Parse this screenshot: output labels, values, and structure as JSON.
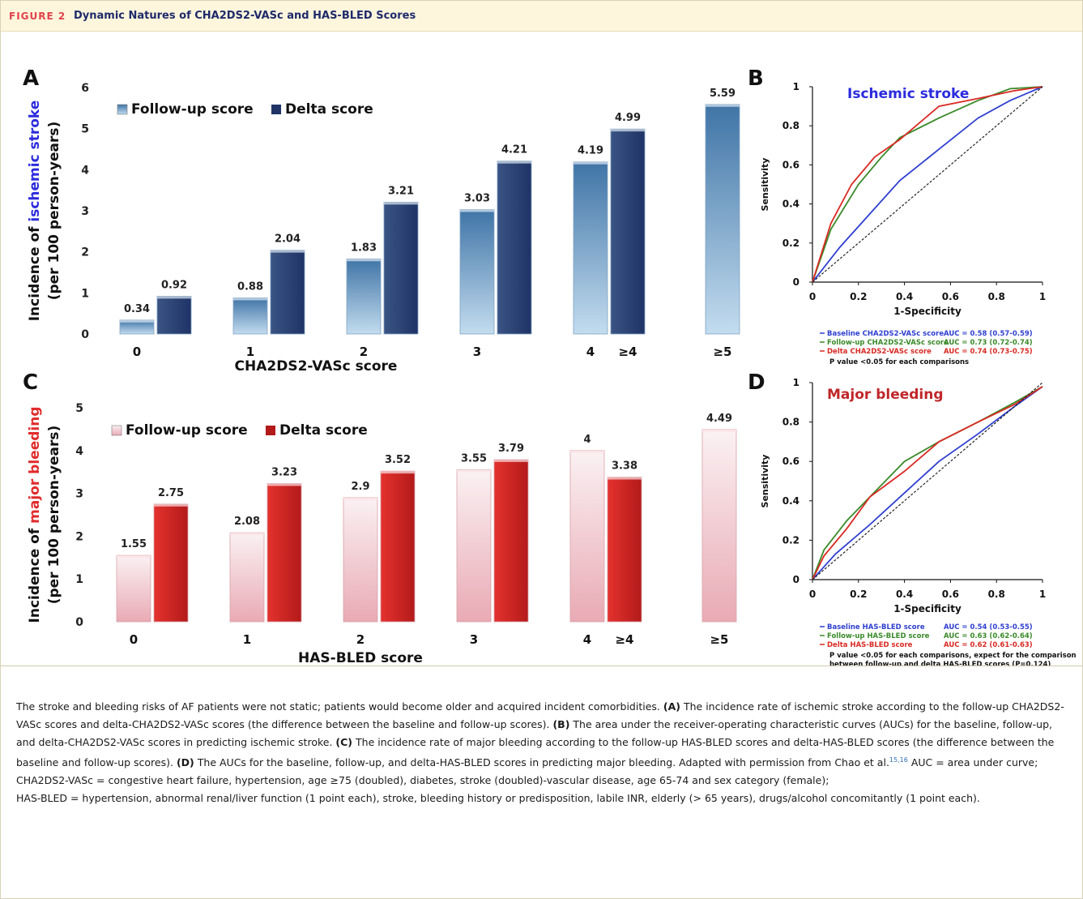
{
  "header": {
    "figure_label": "FIGURE 2",
    "title": "Dynamic Natures of CHA2DS2-VASc and HAS-BLED Scores"
  },
  "colors": {
    "followup_light": "#9ec6e3",
    "followup_dark": "#3f74a6",
    "delta_light": "#3a5484",
    "delta_dark": "#1f3366",
    "bleed_followup_light": "#f6eaec",
    "bleed_followup_dark": "#e9aab4",
    "bleed_delta_light": "#e4322e",
    "bleed_delta_dark": "#b31a1a",
    "roc_baseline": "#2f3fd0",
    "roc_followup": "#3a8a2a",
    "roc_delta": "#d82a23",
    "roc_diagonal": "#222222",
    "stroke_accent": "#2b2bdd",
    "bleed_accent": "#e02b2b"
  },
  "chart_data": [
    {
      "panel": "A",
      "type": "bar",
      "ylabel_prefix": "Incidence of ",
      "ylabel_highlight": "ischemic stroke",
      "ylabel_line2": "(per 100 person-years)",
      "xlabel": "CHA2DS2-VASc score",
      "ylim": [
        0,
        6
      ],
      "yticks": [
        "0",
        "1",
        "2",
        "3",
        "4",
        "5",
        "6"
      ],
      "legend": [
        "Follow-up score",
        "Delta score"
      ],
      "legend_position": "top-left",
      "groups": [
        {
          "followup": {
            "label": "0",
            "value": 0.34
          },
          "delta": {
            "label": "",
            "value": 0.92
          },
          "tick": "0"
        },
        {
          "followup": {
            "label": "1",
            "value": 0.88
          },
          "delta": {
            "label": "",
            "value": 2.04
          },
          "tick": "1"
        },
        {
          "followup": {
            "label": "2",
            "value": 1.83
          },
          "delta": {
            "label": "",
            "value": 3.21
          },
          "tick": "2"
        },
        {
          "followup": {
            "label": "3",
            "value": 3.03
          },
          "delta": {
            "label": "",
            "value": 4.21
          },
          "tick": "3"
        },
        {
          "followup": {
            "label": "4",
            "value": 4.19
          },
          "delta": {
            "label": "≥4",
            "value": 4.99
          },
          "tick": "4"
        },
        {
          "followup": {
            "label": "≥5",
            "value": 5.59
          },
          "delta": null,
          "tick": "≥5"
        }
      ]
    },
    {
      "panel": "B",
      "type": "line",
      "title": "Ischemic stroke",
      "xlabel": "1-Specificity",
      "ylabel": "Sensitivity",
      "xlim": [
        0,
        1
      ],
      "ylim": [
        0,
        1
      ],
      "xticks": [
        "0",
        "0.2",
        "0.4",
        "0.6",
        "0.8",
        "1"
      ],
      "yticks": [
        "0",
        "0.2",
        "0.4",
        "0.6",
        "0.8",
        "1"
      ],
      "series": [
        {
          "name": "Baseline CHA2DS2-VASc score",
          "auc": "AUC = 0.58 (0.57-0.59)",
          "color_key": "roc_baseline",
          "x": [
            0,
            0.12,
            0.25,
            0.38,
            0.55,
            0.72,
            0.86,
            1
          ],
          "y": [
            0,
            0.18,
            0.35,
            0.52,
            0.68,
            0.84,
            0.93,
            1
          ]
        },
        {
          "name": "Follow-up CHA2DS2-VASc score",
          "auc": "AUC = 0.73 (0.72-0.74)",
          "color_key": "roc_followup",
          "x": [
            0,
            0.08,
            0.2,
            0.3,
            0.38,
            0.55,
            0.72,
            0.86,
            1
          ],
          "y": [
            0,
            0.27,
            0.5,
            0.64,
            0.74,
            0.84,
            0.93,
            0.99,
            1
          ]
        },
        {
          "name": "Delta CHA2DS2-VASc score",
          "auc": "AUC = 0.74 (0.73-0.75)",
          "color_key": "roc_delta",
          "x": [
            0,
            0.08,
            0.17,
            0.27,
            0.38,
            0.55,
            0.72,
            0.88,
            1
          ],
          "y": [
            0,
            0.3,
            0.5,
            0.64,
            0.73,
            0.9,
            0.94,
            0.98,
            1
          ]
        },
        {
          "name": "",
          "auc": "",
          "color_key": "roc_diagonal",
          "dashed": true,
          "x": [
            0,
            1
          ],
          "y": [
            0,
            1
          ]
        }
      ],
      "note": "P value <0.05 for each comparisons"
    },
    {
      "panel": "C",
      "type": "bar",
      "ylabel_prefix": "Incidence of ",
      "ylabel_highlight": "major bleeding",
      "ylabel_line2": "(per 100 person-years)",
      "xlabel": "HAS-BLED score",
      "ylim": [
        0,
        5
      ],
      "yticks": [
        "0",
        "1",
        "2",
        "3",
        "4",
        "5"
      ],
      "legend": [
        "Follow-up score",
        "Delta score"
      ],
      "legend_position": "top-left",
      "groups": [
        {
          "followup": {
            "label": "0",
            "value": 1.55
          },
          "delta": {
            "label": "",
            "value": 2.75
          },
          "tick": "0"
        },
        {
          "followup": {
            "label": "1",
            "value": 2.08
          },
          "delta": {
            "label": "",
            "value": 3.23
          },
          "tick": "1"
        },
        {
          "followup": {
            "label": "2",
            "value": 2.9
          },
          "delta": {
            "label": "",
            "value": 3.52
          },
          "tick": "2"
        },
        {
          "followup": {
            "label": "3",
            "value": 3.55
          },
          "delta": {
            "label": "",
            "value": 3.79
          },
          "tick": "3"
        },
        {
          "followup": {
            "label": "4",
            "value": 4
          },
          "delta": {
            "label": "≥4",
            "value": 3.38
          },
          "tick": "4"
        },
        {
          "followup": {
            "label": "≥5",
            "value": 4.49
          },
          "delta": null,
          "tick": "≥5"
        }
      ]
    },
    {
      "panel": "D",
      "type": "line",
      "title": "Major bleeding",
      "xlabel": "1-Specificity",
      "ylabel": "Sensitivity",
      "xlim": [
        0,
        1
      ],
      "ylim": [
        0,
        1
      ],
      "xticks": [
        "0",
        "0.2",
        "0.4",
        "0.6",
        "0.8",
        "1"
      ],
      "yticks": [
        "0",
        "0.2",
        "0.4",
        "0.6",
        "0.8",
        "1"
      ],
      "series": [
        {
          "name": "Baseline HAS-BLED score",
          "auc": "AUC = 0.54 (0.53-0.55)",
          "color_key": "roc_baseline",
          "x": [
            0,
            0.1,
            0.25,
            0.4,
            0.55,
            0.72,
            0.88,
            1
          ],
          "y": [
            0,
            0.13,
            0.28,
            0.44,
            0.6,
            0.74,
            0.88,
            0.98
          ]
        },
        {
          "name": "Follow-up HAS-BLED score",
          "auc": "AUC = 0.63 (0.62-0.64)",
          "color_key": "roc_followup",
          "x": [
            0,
            0.05,
            0.15,
            0.25,
            0.4,
            0.55,
            0.72,
            0.88,
            1
          ],
          "y": [
            0,
            0.15,
            0.3,
            0.42,
            0.6,
            0.7,
            0.8,
            0.9,
            0.98
          ]
        },
        {
          "name": "Delta HAS-BLED score",
          "auc": "AUC = 0.62 (0.61-0.63)",
          "color_key": "roc_delta",
          "x": [
            0,
            0.05,
            0.15,
            0.25,
            0.4,
            0.55,
            0.72,
            0.88,
            1
          ],
          "y": [
            0,
            0.12,
            0.26,
            0.42,
            0.55,
            0.7,
            0.8,
            0.89,
            0.98
          ]
        },
        {
          "name": "",
          "auc": "",
          "color_key": "roc_diagonal",
          "dashed": true,
          "x": [
            0,
            1
          ],
          "y": [
            0,
            1
          ]
        }
      ],
      "note": "P value <0.05 for each comparisons, expect for the comparison",
      "note_line2": "between follow-up and delta HAS-BLED scores (P=0.124)"
    }
  ],
  "caption": {
    "intro": "The stroke and bleeding risks of AF patients were not static; patients would become older and acquired incident comorbidities.",
    "a_label": "(A)",
    "a_text": "The incidence rate of ischemic stroke according to the follow-up CHA2DS2-VASc scores and delta-CHA2DS2-VASc scores (the difference between the baseline and follow-up scores).",
    "b_label": "(B)",
    "b_text": "The area under the receiver-operating characteristic curves (AUCs) for the baseline, follow-up, and delta-CHA2DS2-VASc scores in predicting ischemic stroke.",
    "c_label": "(C)",
    "c_text": "The incidence rate of major bleeding according to the follow-up HAS-BLED scores and delta-HAS-BLED scores (the difference between the baseline and follow-up scores).",
    "d_label": "(D)",
    "d_text": "The AUCs for the baseline, follow-up, and delta-HAS-BLED scores in predicting major bleeding. Adapted with permission from Chao et al.",
    "refs": "15,16",
    "abbr1": "AUC = area under curve;",
    "abbr2": "CHA2DS2-VASc = congestive heart failure, hypertension, age ≥75 (doubled), diabetes, stroke (doubled)-vascular disease, age 65-74 and sex category (female);",
    "abbr3": "HAS-BLED = hypertension, abnormal renal/liver function (1 point each), stroke, bleeding history or predisposition, labile INR, elderly (> 65 years), drugs/alcohol concomitantly (1 point each)."
  }
}
